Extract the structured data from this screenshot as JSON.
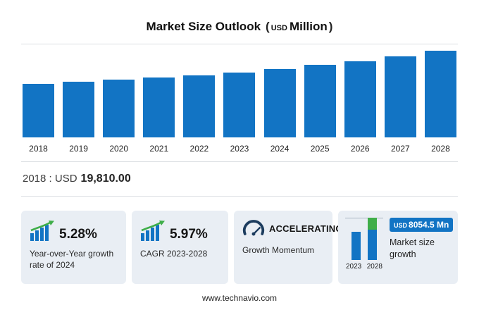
{
  "title": {
    "main": "Market Size Outlook",
    "open": "(",
    "currency": "USD",
    "unit": "Million",
    "close": ")"
  },
  "chart_data": {
    "type": "bar",
    "title": "Market Size Outlook (USD Million)",
    "xlabel": "",
    "ylabel": "",
    "unit": "USD Million",
    "categories": [
      "2018",
      "2019",
      "2020",
      "2021",
      "2022",
      "2023",
      "2024",
      "2025",
      "2026",
      "2027",
      "2028"
    ],
    "values": [
      19810,
      20650,
      21300,
      22100,
      22950,
      23920,
      25180,
      26650,
      28200,
      29850,
      31974.5
    ],
    "ylim": [
      0,
      33000
    ],
    "grid": false,
    "legend": false,
    "bar_color": "#1274c4"
  },
  "baseline": {
    "prefix": "2018 : USD",
    "value": "19,810.00"
  },
  "cards": [
    {
      "icon": "bar-growth-icon",
      "value": "5.28%",
      "label": "Year-over-Year growth rate of 2024"
    },
    {
      "icon": "bar-growth-icon",
      "value": "5.97%",
      "label": "CAGR 2023-2028"
    },
    {
      "icon": "gauge-icon",
      "value": "ACCELERATING",
      "label": "Growth Momentum"
    },
    {
      "icon": "mini-growth-chart",
      "badge_currency": "USD",
      "badge_value": "8054.5 Mn",
      "label": "Market size growth",
      "years": [
        "2023",
        "2028"
      ]
    }
  ],
  "footer": {
    "url": "www.technavio.com"
  },
  "colors": {
    "bar": "#1274c4",
    "green": "#3fae49",
    "card_bg": "#e9eef4",
    "gauge": "#1c3c5e"
  }
}
